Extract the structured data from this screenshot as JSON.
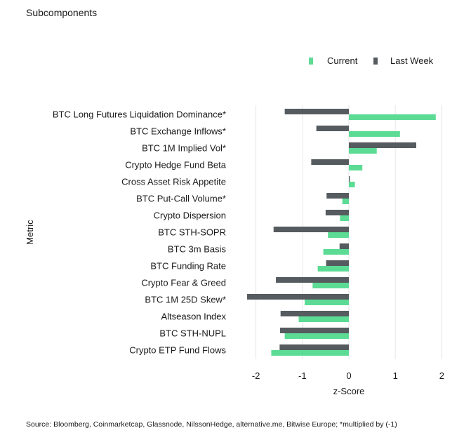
{
  "page": {
    "title": "Subcomponents",
    "source": "Source: Bloomberg, Coinmarketcap, Glassnode, NilssonHedge, alternative.me, Bitwise Europe; *multiplied by (-1)"
  },
  "colors": {
    "current": "#5cdb95",
    "last_week": "#555b5e",
    "grid": "#e6e6e6",
    "text": "#1a1a1a"
  },
  "chart_data": {
    "type": "bar",
    "orientation": "horizontal",
    "categories": [
      "BTC Long Futures Liquidation Dominance*",
      "BTC Exchange Inflows*",
      "BTC 1M Implied Vol*",
      "Crypto Hedge Fund Beta",
      "Cross Asset Risk Appetite",
      "BTC Put-Call Volume*",
      "Crypto Dispersion",
      "BTC STH-SOPR",
      "BTC 3m Basis",
      "BTC Funding Rate",
      "Crypto Fear & Greed",
      "BTC 1M 25D Skew*",
      "Altseason Index",
      "BTC STH-NUPL",
      "Crypto ETP Fund Flows"
    ],
    "series": [
      {
        "name": "Current",
        "values": [
          1.87,
          1.1,
          0.6,
          0.29,
          0.13,
          -0.14,
          -0.19,
          -0.45,
          -0.55,
          -0.67,
          -0.78,
          -0.95,
          -1.08,
          -1.38,
          -1.67
        ]
      },
      {
        "name": "Last Week",
        "values": [
          -1.38,
          -0.7,
          1.45,
          -0.81,
          0.02,
          -0.48,
          -0.5,
          -1.62,
          -0.2,
          -0.49,
          -1.57,
          -2.19,
          -1.47,
          -1.48,
          -1.49
        ]
      }
    ],
    "xlabel": "z-Score",
    "ylabel": "Metric",
    "xlim": [
      -2.3,
      2.2
    ],
    "xticks": [
      -2,
      -1,
      0,
      1,
      2
    ],
    "grid": "vertical",
    "legend_position": "top-right"
  }
}
